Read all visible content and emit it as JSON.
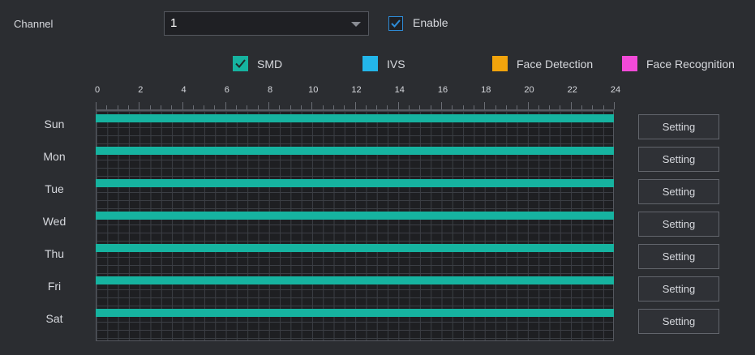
{
  "channel": {
    "label": "Channel",
    "value": "1"
  },
  "enable": {
    "label": "Enable",
    "checked": true
  },
  "legend": [
    {
      "label": "SMD",
      "color": "#16b3a0",
      "checked": true
    },
    {
      "label": "IVS",
      "color": "#23b6ea",
      "checked": false
    },
    {
      "label": "Face Detection",
      "color": "#f2a40c",
      "checked": false
    },
    {
      "label": "Face Recognition",
      "color": "#f24ad8",
      "checked": false
    }
  ],
  "axis": {
    "ticks": [
      "0",
      "2",
      "4",
      "6",
      "8",
      "10",
      "12",
      "14",
      "16",
      "18",
      "20",
      "22",
      "24"
    ]
  },
  "days": [
    {
      "label": "Sun",
      "setting_label": "Setting",
      "schedule": [
        [
          0,
          24
        ]
      ]
    },
    {
      "label": "Mon",
      "setting_label": "Setting",
      "schedule": [
        [
          0,
          24
        ]
      ]
    },
    {
      "label": "Tue",
      "setting_label": "Setting",
      "schedule": [
        [
          0,
          24
        ]
      ]
    },
    {
      "label": "Wed",
      "setting_label": "Setting",
      "schedule": [
        [
          0,
          24
        ]
      ]
    },
    {
      "label": "Thu",
      "setting_label": "Setting",
      "schedule": [
        [
          0,
          24
        ]
      ]
    },
    {
      "label": "Fri",
      "setting_label": "Setting",
      "schedule": [
        [
          0,
          24
        ]
      ]
    },
    {
      "label": "Sat",
      "setting_label": "Setting",
      "schedule": [
        [
          0,
          24
        ]
      ]
    }
  ]
}
